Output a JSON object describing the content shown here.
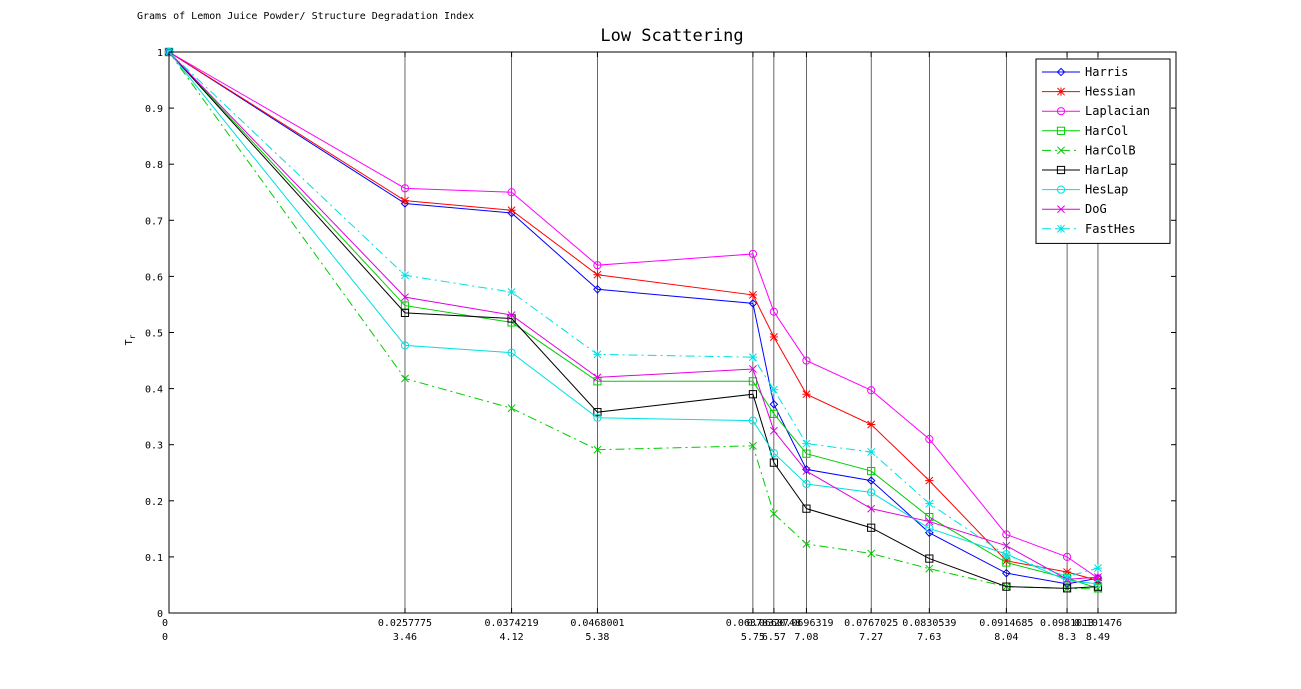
{
  "chart_data": {
    "type": "line",
    "title": "Low Scattering",
    "top_left_label": "Grams of Lemon Juice Powder/ Structure Degradation Index",
    "ylabel": "T",
    "ylabel_sub": "r",
    "xlim": [
      0,
      0.11
    ],
    "ylim": [
      0,
      1
    ],
    "yticks": [
      0,
      0.1,
      0.2,
      0.3,
      0.4,
      0.5,
      0.6,
      0.7,
      0.8,
      0.9,
      1
    ],
    "yticklabels": [
      "0",
      "0.1",
      "0.2",
      "0.3",
      "0.4",
      "0.5",
      "0.6",
      "0.7",
      "0.8",
      "0.9",
      "1"
    ],
    "x": [
      0,
      0.0257775,
      0.0374219,
      0.0468001,
      0.0637832,
      0.0660748,
      0.0696319,
      0.0767025,
      0.0830539,
      0.0914685,
      0.0981013,
      0.101476
    ],
    "xtick_values": [
      0,
      0.0257775,
      0.0374219,
      0.0468001,
      0.0637832,
      0.0660748,
      0.0696319,
      0.0767025,
      0.0830539,
      0.0914685,
      0.0981013,
      0.101476
    ],
    "xtick_labels_row1": [
      "0",
      "0.0257775",
      "0.0374219",
      "0.0468001",
      "0.0637832",
      "0.0660748",
      "0.0696319",
      "0.0767025",
      "0.0830539",
      "0.0914685",
      "0.0981013",
      "0.101476"
    ],
    "xtick_labels_row2": [
      "0",
      "3.46",
      "4.12",
      "5.38",
      "5.75",
      "6.57",
      "7.08",
      "7.27",
      "7.63",
      "8.04",
      "8.3",
      "8.49"
    ],
    "grid": "vertical lines at x ticks",
    "legend_position": "top-right",
    "series": [
      {
        "name": "Harris",
        "color": "#0000ff",
        "marker": "diamond",
        "dash": "solid",
        "values": [
          1,
          0.73,
          0.713,
          0.577,
          0.552,
          0.372,
          0.256,
          0.236,
          0.143,
          0.071,
          0.052,
          0.062
        ]
      },
      {
        "name": "Hessian",
        "color": "#ff0000",
        "marker": "star",
        "dash": "solid",
        "values": [
          1,
          0.735,
          0.718,
          0.603,
          0.567,
          0.492,
          0.39,
          0.336,
          0.236,
          0.093,
          0.073,
          0.058
        ]
      },
      {
        "name": "Laplacian",
        "color": "#ff00ff",
        "marker": "circle",
        "dash": "solid",
        "values": [
          1,
          0.757,
          0.75,
          0.62,
          0.64,
          0.537,
          0.45,
          0.397,
          0.31,
          0.14,
          0.1,
          0.062
        ]
      },
      {
        "name": "HarCol",
        "color": "#00cc00",
        "marker": "square",
        "dash": "solid",
        "values": [
          1,
          0.548,
          0.518,
          0.413,
          0.413,
          0.355,
          0.284,
          0.253,
          0.171,
          0.09,
          0.062,
          0.044
        ]
      },
      {
        "name": "HarColB",
        "color": "#00cc00",
        "marker": "x",
        "dash": "dashdot",
        "values": [
          1,
          0.418,
          0.365,
          0.291,
          0.298,
          0.177,
          0.123,
          0.106,
          0.079,
          0.047,
          0.044,
          0.043
        ]
      },
      {
        "name": "HarLap",
        "color": "#000000",
        "marker": "square",
        "dash": "solid",
        "values": [
          1,
          0.535,
          0.525,
          0.358,
          0.39,
          0.268,
          0.186,
          0.152,
          0.097,
          0.047,
          0.044,
          0.047
        ]
      },
      {
        "name": "HesLap",
        "color": "#00e0e0",
        "marker": "circle",
        "dash": "solid",
        "values": [
          1,
          0.477,
          0.464,
          0.348,
          0.343,
          0.285,
          0.23,
          0.215,
          0.151,
          0.105,
          0.058,
          0.052
        ]
      },
      {
        "name": "DoG",
        "color": "#e000e0",
        "marker": "x",
        "dash": "solid",
        "values": [
          1,
          0.563,
          0.531,
          0.42,
          0.435,
          0.325,
          0.253,
          0.186,
          0.163,
          0.12,
          0.06,
          0.064
        ]
      },
      {
        "name": "FastHes",
        "color": "#00e0e0",
        "marker": "star",
        "dash": "dashdot",
        "values": [
          1,
          0.602,
          0.572,
          0.461,
          0.456,
          0.398,
          0.302,
          0.287,
          0.195,
          0.103,
          0.065,
          0.08
        ]
      }
    ]
  }
}
